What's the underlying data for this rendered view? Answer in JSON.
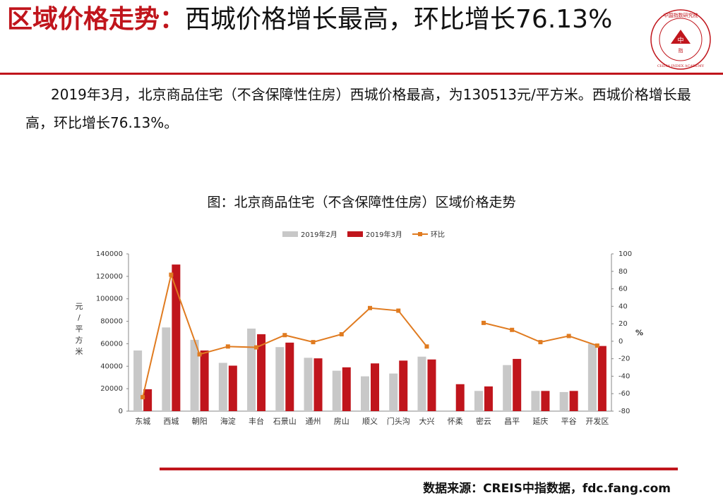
{
  "header": {
    "title_highlight": "区域价格走势：",
    "title_rest": "西城价格增长最高，环比增长76.13%"
  },
  "logo": {
    "text_ring": "中国指数研究院 CHINA INDEX ACADEMY",
    "text_center": "中指"
  },
  "paragraph": "2019年3月，北京商品住宅（不含保障性住房）西城价格最高，为130513元/平方米。西城价格增长最高，环比增长76.13%。",
  "colors": {
    "accent_red": "#c0151c",
    "bar_feb": "#c8c8c8",
    "bar_mar": "#c0151c",
    "line_mom": "#e07b20"
  },
  "chart_data": {
    "type": "bar",
    "title": "图：北京商品住宅（不含保障性住房）区域价格走势",
    "categories": [
      "东城",
      "西城",
      "朝阳",
      "海淀",
      "丰台",
      "石景山",
      "通州",
      "房山",
      "顺义",
      "门头沟",
      "大兴",
      "怀柔",
      "密云",
      "昌平",
      "延庆",
      "平谷",
      "开发区"
    ],
    "series": [
      {
        "name": "2019年2月",
        "type": "bar",
        "axis": "left",
        "values": [
          54000,
          74500,
          63500,
          43000,
          73500,
          57000,
          47500,
          36000,
          31000,
          33500,
          48500,
          null,
          18000,
          41000,
          18000,
          17000,
          60000
        ]
      },
      {
        "name": "2019年3月",
        "type": "bar",
        "axis": "left",
        "values": [
          19500,
          130513,
          54000,
          40500,
          68500,
          61000,
          47000,
          39000,
          42500,
          45000,
          46000,
          24000,
          22000,
          46500,
          18000,
          18000,
          58000
        ]
      },
      {
        "name": "环比",
        "type": "line",
        "axis": "right",
        "values": [
          -64,
          76.13,
          -15,
          -6,
          -7,
          7,
          -1,
          8,
          38,
          35,
          -6,
          null,
          21,
          13,
          -1,
          6,
          -5
        ]
      }
    ],
    "y_left": {
      "label": "元/平方米",
      "min": 0,
      "max": 140000,
      "ticks": [
        0,
        20000,
        40000,
        60000,
        80000,
        100000,
        120000,
        140000
      ]
    },
    "y_right": {
      "label": "%",
      "min": -80,
      "max": 100,
      "ticks": [
        -80,
        -60,
        -40,
        -20,
        0,
        20,
        40,
        60,
        80,
        100
      ]
    },
    "legend_position": "top",
    "grid": false
  },
  "source": "数据来源：CREIS中指数据，fdc.fang.com"
}
